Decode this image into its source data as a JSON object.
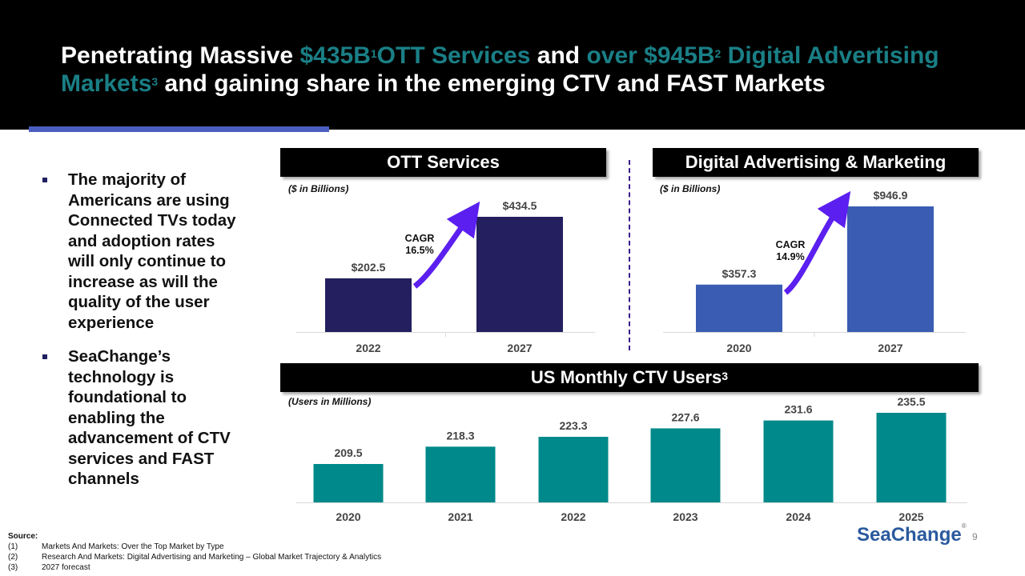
{
  "title": {
    "part1": "Penetrating Massive ",
    "teal1": "$435B",
    "sup1": "1",
    "teal2": "OTT Services",
    "part2": " and ",
    "teal3": "over $945B",
    "sup2": "2",
    "teal4": " Digital Advertising Markets",
    "sup3": "3",
    "part3": " and gaining share in the emerging CTV and FAST Markets"
  },
  "bullets": [
    "The majority of Americans are using Connected TVs today and adoption rates will only continue to increase as will the quality of the user experience",
    "SeaChange’s technology is foundational to enabling the advancement of CTV services and FAST channels"
  ],
  "panels": {
    "ott_title": "OTT Services",
    "ott_unit": "($ in Billions)",
    "digital_title": "Digital Advertising & Marketing",
    "digital_unit": "($ in Billions)",
    "ctv_title": "US Monthly CTV Users",
    "ctv_sup": "3",
    "ctv_unit": "(Users in Millions)"
  },
  "colors": {
    "navy": "#241f5e",
    "blue": "#3a5db3",
    "teal": "#00898a",
    "arrow": "#5b1ff0"
  },
  "chart_data": [
    {
      "type": "bar",
      "title": "OTT Services",
      "ylabel": "($ in Billions)",
      "categories": [
        "2022",
        "2027"
      ],
      "values": [
        202.5,
        434.5
      ],
      "labels": [
        "$202.5",
        "$434.5"
      ],
      "ylim": [
        0,
        520
      ],
      "annotation": {
        "line1": "CAGR",
        "line2": "16.5%"
      }
    },
    {
      "type": "bar",
      "title": "Digital Advertising & Marketing",
      "ylabel": "($ in Billions)",
      "categories": [
        "2020",
        "2027"
      ],
      "values": [
        357.3,
        946.9
      ],
      "labels": [
        "$357.3",
        "$946.9"
      ],
      "ylim": [
        0,
        1100
      ],
      "annotation": {
        "line1": "CAGR",
        "line2": "14.9%"
      }
    },
    {
      "type": "bar",
      "title": "US Monthly CTV Users",
      "ylabel": "(Users in Millions)",
      "categories": [
        "2020",
        "2021",
        "2022",
        "2023",
        "2024",
        "2025"
      ],
      "values": [
        209.5,
        218.3,
        223.3,
        227.6,
        231.6,
        235.5
      ],
      "labels": [
        "209.5",
        "218.3",
        "223.3",
        "227.6",
        "231.6",
        "235.5"
      ],
      "ylim": [
        190,
        240
      ]
    }
  ],
  "source": {
    "heading": "Source:",
    "items": [
      {
        "num": "(1)",
        "text": "Markets And Markets: Over the Top Market by Type"
      },
      {
        "num": "(2)",
        "text": "Research And Markets: Digital Advertising and Marketing – Global Market Trajectory & Analytics"
      },
      {
        "num": "(3)",
        "text": "2027 forecast"
      }
    ]
  },
  "logo": {
    "text": "SeaChange",
    "mark": "®"
  },
  "page_number": "9"
}
